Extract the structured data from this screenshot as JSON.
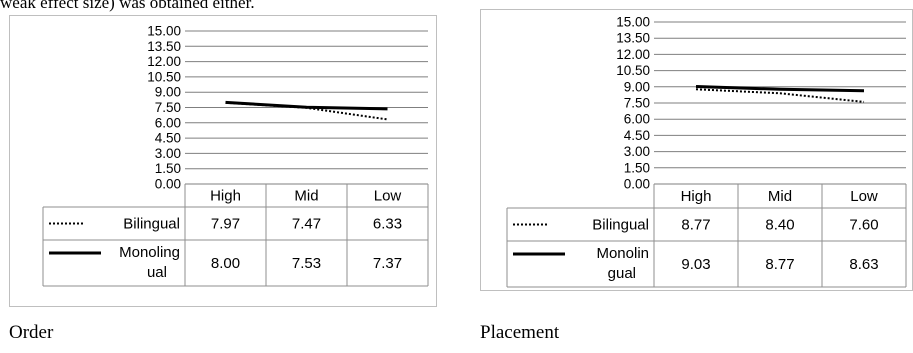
{
  "context": {
    "clipped_text": "weak effect size) was obtained either."
  },
  "captions": {
    "left": "Order",
    "right": "Placement"
  },
  "styles": {
    "line_color": "#000000",
    "grid_color": "#7f7f7f",
    "border_color": "#bfbfbf"
  },
  "chart_data": [
    {
      "type": "line",
      "categories": [
        "High",
        "Mid",
        "Low"
      ],
      "ylim": [
        0,
        15
      ],
      "yticks": [
        "15.00",
        "13.50",
        "12.00",
        "10.50",
        "9.00",
        "7.50",
        "6.00",
        "4.50",
        "3.00",
        "1.50",
        "0.00"
      ],
      "series": [
        {
          "name": "Bilingual",
          "label_lines": [
            "Bilingual"
          ],
          "style": "dotted",
          "values": [
            7.97,
            7.47,
            6.33
          ],
          "labels": [
            "7.97",
            "7.47",
            "6.33"
          ]
        },
        {
          "name": "Monolingual",
          "label_lines": [
            "Monoling",
            "ual"
          ],
          "style": "solid",
          "values": [
            8.0,
            7.53,
            7.37
          ],
          "labels": [
            "8.00",
            "7.53",
            "7.37"
          ]
        }
      ],
      "data_table": true,
      "grid": true
    },
    {
      "type": "line",
      "categories": [
        "High",
        "Mid",
        "Low"
      ],
      "ylim": [
        0,
        15
      ],
      "yticks": [
        "15.00",
        "13.50",
        "12.00",
        "10.50",
        "9.00",
        "7.50",
        "6.00",
        "4.50",
        "3.00",
        "1.50",
        "0.00"
      ],
      "series": [
        {
          "name": "Bilingual",
          "label_lines": [
            "Bilingual"
          ],
          "style": "dotted",
          "values": [
            8.77,
            8.4,
            7.6
          ],
          "labels": [
            "8.77",
            "8.40",
            "7.60"
          ]
        },
        {
          "name": "Monolingual",
          "label_lines": [
            "Monolin",
            "gual"
          ],
          "style": "solid",
          "values": [
            9.03,
            8.77,
            8.63
          ],
          "labels": [
            "9.03",
            "8.77",
            "8.63"
          ]
        }
      ],
      "data_table": true,
      "grid": true
    }
  ]
}
